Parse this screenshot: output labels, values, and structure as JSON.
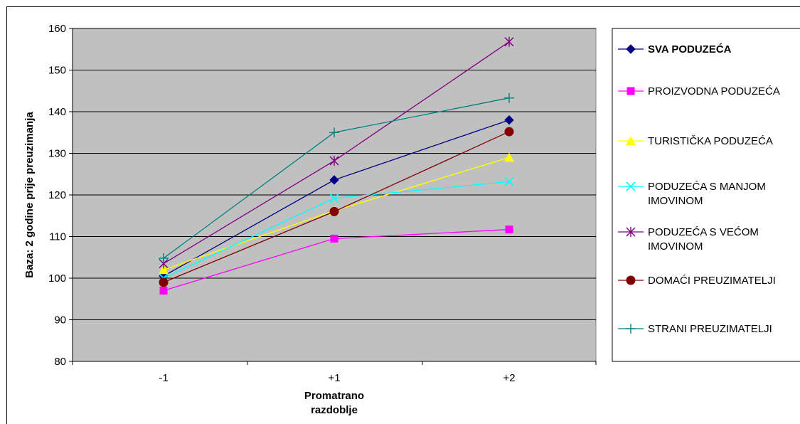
{
  "chart_data": {
    "type": "line",
    "categories": [
      "-1",
      "+1",
      "+2"
    ],
    "xlabel": [
      "Promatrano",
      "razdoblje"
    ],
    "ylabel": "Baza: 2 godine prije preuzimanja",
    "ylim": [
      80,
      160
    ],
    "yticks": [
      80,
      90,
      100,
      110,
      120,
      130,
      140,
      150,
      160
    ],
    "grid": "horizontal",
    "plot_background": "#c0c0c0",
    "legend_position": "right",
    "series": [
      {
        "name": "SVA PODUZEĆA",
        "values": [
          100.5,
          123.6,
          138.0
        ],
        "color": "#000080",
        "marker": "diamond",
        "bold": true
      },
      {
        "name": "PROIZVODNA PODUZEĆA",
        "values": [
          97.0,
          109.5,
          111.7
        ],
        "color": "#ff00ff",
        "marker": "square"
      },
      {
        "name": "TURISTIČKA PODUZEĆA",
        "values": [
          102.0,
          116.2,
          129.0
        ],
        "color": "#ffff00",
        "marker": "triangle"
      },
      {
        "name": [
          "PODUZEĆA S MANJOM",
          "IMOVINOM"
        ],
        "values": [
          100.0,
          119.2,
          123.2
        ],
        "color": "#00ffff",
        "marker": "x"
      },
      {
        "name": [
          "PODUZEĆA S VEĆOM",
          "IMOVINOM"
        ],
        "values": [
          103.5,
          128.2,
          156.8
        ],
        "color": "#800080",
        "marker": "star"
      },
      {
        "name": "DOMAĆI PREUZIMATELJI",
        "values": [
          99.0,
          116.0,
          135.2
        ],
        "color": "#800000",
        "marker": "circle"
      },
      {
        "name": "STRANI PREUZIMATELJI",
        "values": [
          104.8,
          135.0,
          143.3
        ],
        "color": "#008080",
        "marker": "plus"
      }
    ]
  }
}
